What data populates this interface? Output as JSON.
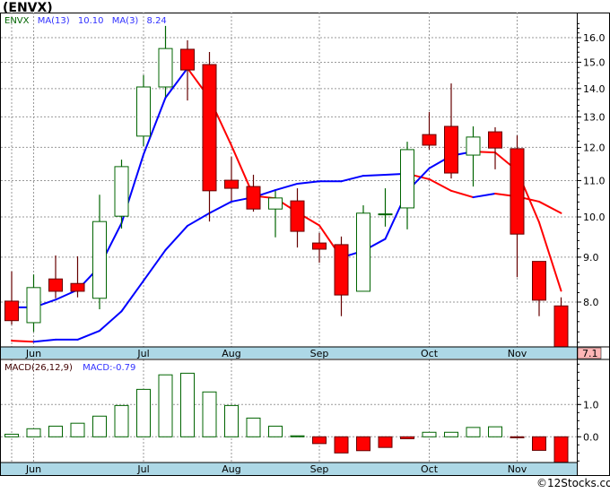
{
  "title": "(ENVX)",
  "legend": {
    "symbol": "ENVX",
    "ma13_label": "MA(13)",
    "ma13_value": "10.10",
    "ma3_label": "MA(3)",
    "ma3_value": "8.24"
  },
  "macd_legend": {
    "label": "MACD(26,12,9)",
    "value": "MACD:-0.79"
  },
  "last_price_label": "7.1",
  "copyright": "©12Stocks.com",
  "colors": {
    "up": "#006400",
    "down": "#ff0000",
    "down_border": "#660000",
    "ma_up": "#0000ff",
    "ma_down": "#ff0000",
    "strip": "#add8e6",
    "last_price_bg": "#ffb6b6"
  },
  "chart_data": [
    {
      "type": "candlestick",
      "title": "ENVX weekly price",
      "yscale": "log",
      "ylim": [
        7.1,
        16.6
      ],
      "price_ticks": [
        "8.0",
        "9.0",
        "10.0",
        "11.0",
        "12.0",
        "13.0",
        "14.0",
        "15.0",
        "16.0"
      ],
      "months": [
        {
          "label": "Jun",
          "week": 1
        },
        {
          "label": "Jul",
          "week": 6
        },
        {
          "label": "Aug",
          "week": 10
        },
        {
          "label": "Sep",
          "week": 14
        },
        {
          "label": "Oct",
          "week": 19
        },
        {
          "label": "Nov",
          "week": 23
        }
      ],
      "candles": [
        {
          "o": 8.02,
          "h": 8.67,
          "l": 7.54,
          "c": 7.62
        },
        {
          "o": 7.58,
          "h": 8.6,
          "l": 7.4,
          "c": 8.31
        },
        {
          "o": 8.5,
          "h": 9.04,
          "l": 8.08,
          "c": 8.23
        },
        {
          "o": 8.4,
          "h": 9.02,
          "l": 8.1,
          "c": 8.23
        },
        {
          "o": 8.08,
          "h": 10.6,
          "l": 7.85,
          "c": 9.88
        },
        {
          "o": 10.02,
          "h": 11.62,
          "l": 9.7,
          "c": 11.41
        },
        {
          "o": 12.36,
          "h": 14.5,
          "l": 12.04,
          "c": 14.06
        },
        {
          "o": 14.06,
          "h": 16.5,
          "l": 13.7,
          "c": 15.55
        },
        {
          "o": 15.52,
          "h": 15.89,
          "l": 13.57,
          "c": 14.7
        },
        {
          "o": 14.91,
          "h": 15.41,
          "l": 9.88,
          "c": 10.71
        },
        {
          "o": 11.01,
          "h": 11.71,
          "l": 10.43,
          "c": 10.78
        },
        {
          "o": 10.83,
          "h": 11.17,
          "l": 10.14,
          "c": 10.21
        },
        {
          "o": 10.21,
          "h": 10.71,
          "l": 9.48,
          "c": 10.51
        },
        {
          "o": 10.43,
          "h": 10.78,
          "l": 9.23,
          "c": 9.63
        },
        {
          "o": 9.34,
          "h": 9.59,
          "l": 8.87,
          "c": 9.19
        },
        {
          "o": 9.3,
          "h": 9.5,
          "l": 7.71,
          "c": 8.15
        },
        {
          "o": 8.23,
          "h": 10.31,
          "l": 8.23,
          "c": 10.1
        },
        {
          "o": 10.06,
          "h": 10.78,
          "l": 9.75,
          "c": 10.08
        },
        {
          "o": 10.24,
          "h": 12.18,
          "l": 9.68,
          "c": 11.93
        },
        {
          "o": 12.41,
          "h": 13.17,
          "l": 11.93,
          "c": 12.07
        },
        {
          "o": 12.68,
          "h": 14.19,
          "l": 11.06,
          "c": 11.22
        },
        {
          "o": 11.76,
          "h": 12.68,
          "l": 10.83,
          "c": 12.33
        },
        {
          "o": 12.5,
          "h": 12.65,
          "l": 11.33,
          "c": 11.98
        },
        {
          "o": 11.96,
          "h": 12.38,
          "l": 8.54,
          "c": 9.56
        },
        {
          "o": 8.9,
          "h": 8.9,
          "l": 7.71,
          "c": 8.04
        },
        {
          "o": 7.92,
          "h": 8.1,
          "l": 7.1,
          "c": 7.1
        }
      ],
      "ma3": [
        7.89,
        7.89,
        8.05,
        8.26,
        8.78,
        9.84,
        11.78,
        13.67,
        14.77,
        13.65,
        12.06,
        10.57,
        10.5,
        10.12,
        9.78,
        8.99,
        9.15,
        9.44,
        10.7,
        11.36,
        11.74,
        11.87,
        11.84,
        11.29,
        9.86,
        8.24
      ],
      "ma13": [
        7.23,
        7.21,
        7.25,
        7.25,
        7.42,
        7.81,
        8.46,
        9.17,
        9.77,
        10.1,
        10.41,
        10.53,
        10.73,
        10.91,
        10.98,
        10.98,
        11.14,
        11.17,
        11.2,
        11.04,
        10.71,
        10.53,
        10.63,
        10.55,
        10.41,
        10.1
      ]
    },
    {
      "type": "bar",
      "title": "MACD(26,12,9) histogram",
      "ylim": [
        -0.79,
        2.4
      ],
      "ticks": [
        "0.0",
        "1.0"
      ],
      "values": [
        0.08,
        0.25,
        0.33,
        0.42,
        0.64,
        0.97,
        1.47,
        1.92,
        1.97,
        1.39,
        0.97,
        0.58,
        0.33,
        0.03,
        -0.21,
        -0.5,
        -0.43,
        -0.33,
        -0.06,
        0.14,
        0.14,
        0.29,
        0.31,
        -0.03,
        -0.42,
        -0.79
      ]
    }
  ]
}
